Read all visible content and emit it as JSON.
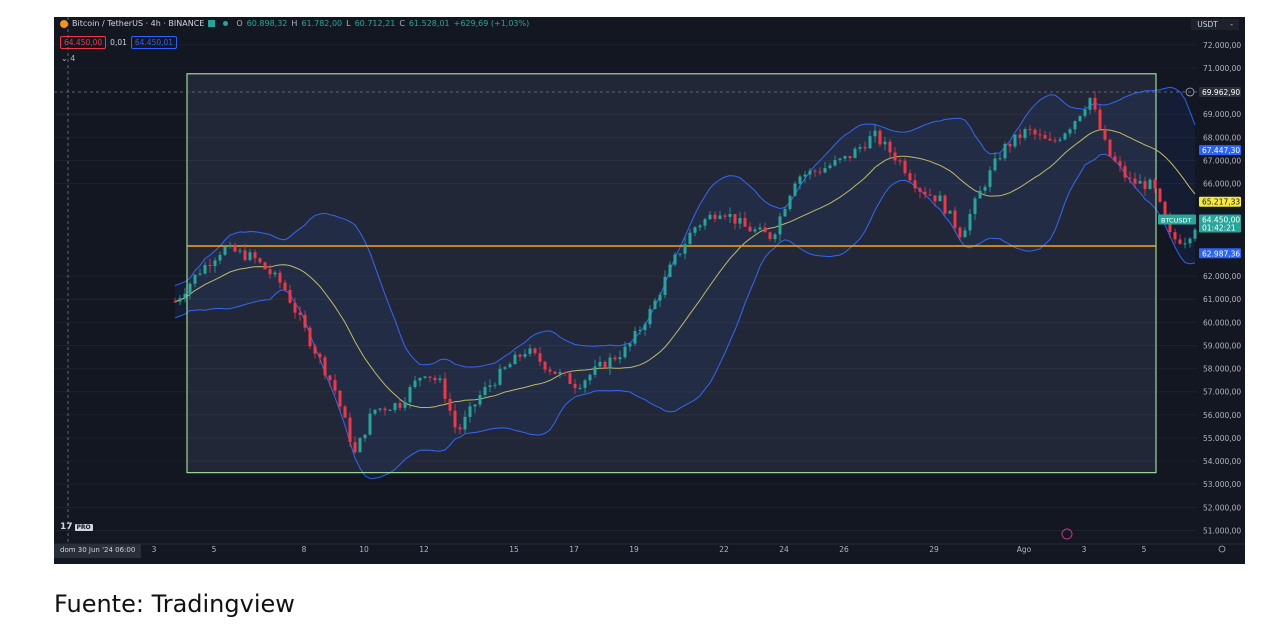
{
  "header": {
    "symbol": "Bitcoin / TetherUS · 4h · BINANCE",
    "o_label": "O",
    "o_value": "60.898,32",
    "h_label": "H",
    "h_value": "61.782,00",
    "l_label": "L",
    "l_value": "60.712,21",
    "c_label": "C",
    "c_value": "61.528,01",
    "change": "+629,69 (+1,03%)",
    "sell_price": "64.450,00",
    "spread": "0,01",
    "buy_price": "64.450,01",
    "indicators_count": "4",
    "currency": "USDT"
  },
  "logo_text": "17",
  "logo_badge": "PRO",
  "date_chip": "dom 30 Jun '24   06:00",
  "caption": "Fuente: Tradingview",
  "chart_data": {
    "type": "candlestick",
    "x_tick_labels": [
      "3",
      "5",
      "8",
      "10",
      "12",
      "15",
      "17",
      "19",
      "22",
      "24",
      "26",
      "29",
      "Ago",
      "3",
      "5"
    ],
    "y_tick_labels": [
      "72.000,00",
      "71.000,00",
      "69.000,00",
      "68.000,00",
      "67.000,00",
      "66.000,00",
      "62.000,00",
      "61.000,00",
      "60.000,00",
      "59.000,00",
      "58.000,00",
      "57.000,00",
      "56.000,00",
      "55.000,00",
      "54.000,00",
      "53.000,00",
      "52.000,00",
      "51.000,00"
    ],
    "y_tick_values": [
      72000,
      71000,
      69000,
      68000,
      67000,
      66000,
      62000,
      61000,
      60000,
      59000,
      58000,
      57000,
      56000,
      55000,
      54000,
      53000,
      52000,
      51000
    ],
    "ylim": [
      50500,
      72600
    ],
    "price_labels": [
      {
        "text": "69.962,90",
        "value": 69962.9,
        "color": "#2a2e39"
      },
      {
        "text": "67.447,30",
        "value": 67447.3,
        "color": "#2962ff"
      },
      {
        "text": "65.217,33",
        "value": 65217.33,
        "color": "#f7e93b"
      },
      {
        "text": "64.450,00",
        "value": 64450,
        "color": "#26a69a"
      },
      {
        "text": "62.987,36",
        "value": 62987.36,
        "color": "#2962ff"
      }
    ],
    "symbol_tag": "BTCUSDT",
    "countdown": "01:42:21",
    "crosshair_price": 69962.9,
    "horizontal_line": 63300,
    "rectangle": {
      "day_start": -0.9,
      "day_end": 31.4,
      "price_top": 70750,
      "price_bottom": 53500
    },
    "candle_anchors": [
      {
        "day": -1.3,
        "price": 60900
      },
      {
        "day": -0.5,
        "price": 62200
      },
      {
        "day": 0.3,
        "price": 63200
      },
      {
        "day": 1.3,
        "price": 62800
      },
      {
        "day": 2.3,
        "price": 61600
      },
      {
        "day": 3.2,
        "price": 59200
      },
      {
        "day": 4.0,
        "price": 57200
      },
      {
        "day": 4.7,
        "price": 54300
      },
      {
        "day": 5.3,
        "price": 56200
      },
      {
        "day": 6.2,
        "price": 56500
      },
      {
        "day": 7.0,
        "price": 57900
      },
      {
        "day": 7.6,
        "price": 57300
      },
      {
        "day": 8.1,
        "price": 55200
      },
      {
        "day": 8.9,
        "price": 56900
      },
      {
        "day": 9.8,
        "price": 58100
      },
      {
        "day": 10.4,
        "price": 58800
      },
      {
        "day": 11.3,
        "price": 57900
      },
      {
        "day": 12.1,
        "price": 57300
      },
      {
        "day": 12.9,
        "price": 58100
      },
      {
        "day": 13.8,
        "price": 58900
      },
      {
        "day": 14.6,
        "price": 60600
      },
      {
        "day": 15.3,
        "price": 62600
      },
      {
        "day": 16.0,
        "price": 64100
      },
      {
        "day": 16.9,
        "price": 64900
      },
      {
        "day": 17.7,
        "price": 64100
      },
      {
        "day": 18.6,
        "price": 63700
      },
      {
        "day": 19.4,
        "price": 66300
      },
      {
        "day": 20.2,
        "price": 66600
      },
      {
        "day": 21.1,
        "price": 67100
      },
      {
        "day": 22.0,
        "price": 68100
      },
      {
        "day": 22.9,
        "price": 66900
      },
      {
        "day": 23.5,
        "price": 65800
      },
      {
        "day": 24.2,
        "price": 65300
      },
      {
        "day": 24.9,
        "price": 63800
      },
      {
        "day": 25.6,
        "price": 65800
      },
      {
        "day": 26.3,
        "price": 67500
      },
      {
        "day": 27.1,
        "price": 68300
      },
      {
        "day": 27.9,
        "price": 67700
      },
      {
        "day": 28.6,
        "price": 68600
      },
      {
        "day": 29.2,
        "price": 69700
      },
      {
        "day": 29.8,
        "price": 67300
      },
      {
        "day": 30.5,
        "price": 66100
      },
      {
        "day": 31.3,
        "price": 65900
      },
      {
        "day": 31.9,
        "price": 63600
      },
      {
        "day": 32.4,
        "price": 63600
      },
      {
        "day": 32.8,
        "price": 64400
      }
    ]
  }
}
